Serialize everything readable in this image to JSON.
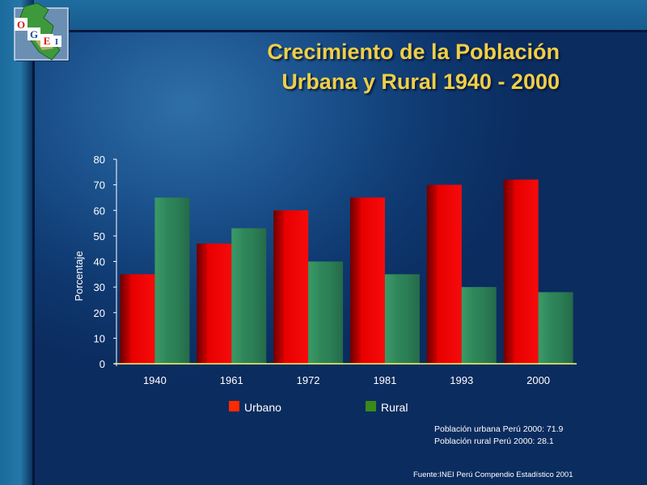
{
  "slide": {
    "title_line1": "Crecimiento de la Población",
    "title_line2": "Urbana y Rural 1940 - 2000",
    "logo_letters": [
      "O",
      "G",
      "E",
      "I"
    ],
    "note_urban": "Población urbana Perú 2000: 71.9",
    "note_rural": "Población rural Perú 2000: 28.1",
    "source": "Fuente:INEI Perú Compendio Estadístico 2001"
  },
  "chart_data": {
    "type": "bar",
    "title": "",
    "xlabel": "",
    "ylabel": "Porcentaje",
    "categories": [
      "1940",
      "1961",
      "1972",
      "1981",
      "1993",
      "2000"
    ],
    "series": [
      {
        "name": "Urbano",
        "values": [
          35,
          47,
          60,
          65,
          70,
          72
        ],
        "color": "#ff0000"
      },
      {
        "name": "Rural",
        "values": [
          65,
          53,
          40,
          35,
          30,
          28
        ],
        "color": "#2e8b57"
      }
    ],
    "ylim": [
      0,
      80
    ],
    "yticks": [
      0,
      10,
      20,
      30,
      40,
      50,
      60,
      70,
      80
    ],
    "grid": false,
    "legend_position": "bottom"
  }
}
